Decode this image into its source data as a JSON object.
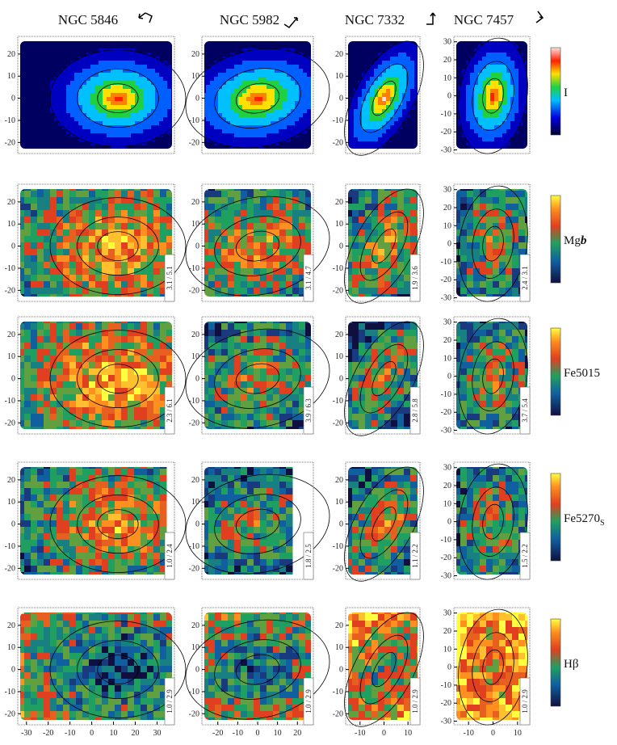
{
  "columns": [
    {
      "title": "NGC 5846",
      "x_ticks": [
        -30,
        -20,
        -10,
        0,
        10,
        20,
        30
      ],
      "y_ticks": [
        20,
        10,
        0,
        -10,
        -20
      ]
    },
    {
      "title": "NGC 5982",
      "x_ticks": [
        -20,
        -10,
        0,
        10,
        20
      ],
      "y_ticks": [
        20,
        10,
        0,
        -10,
        -20
      ]
    },
    {
      "title": "NGC 7332",
      "x_ticks": [
        -10,
        0,
        10
      ],
      "y_ticks": [
        20,
        10,
        0,
        -10,
        -20
      ]
    },
    {
      "title": "NGC 7457",
      "x_ticks": [
        -10,
        0,
        10
      ],
      "y_ticks": [
        30,
        20,
        10,
        0,
        -10,
        -20,
        -30
      ]
    }
  ],
  "rows": [
    {
      "label": "I"
    },
    {
      "label": "Mg",
      "label_bold": "b",
      "ranges": [
        "3.1 / 5.1",
        "3.1 / 4.7",
        "1.9 / 3.6",
        "2.4 / 3.1"
      ]
    },
    {
      "label": "Fe5015",
      "ranges": [
        "2.3 / 6.1",
        "3.9 / 6.3",
        "2.8 / 5.8",
        "3.7 / 5.4"
      ]
    },
    {
      "label": "Fe5270",
      "label_sub": "S",
      "ranges": [
        "1.0 / 2.4",
        "1.8 / 2.5",
        "1.1 / 2.2",
        "1.5 / 2.2"
      ]
    },
    {
      "label": "Hβ",
      "ranges": [
        "1.0 / 2.9",
        "1.0 / 2.9",
        "1.0 / 2.9",
        "1.0 / 2.9"
      ]
    }
  ]
}
